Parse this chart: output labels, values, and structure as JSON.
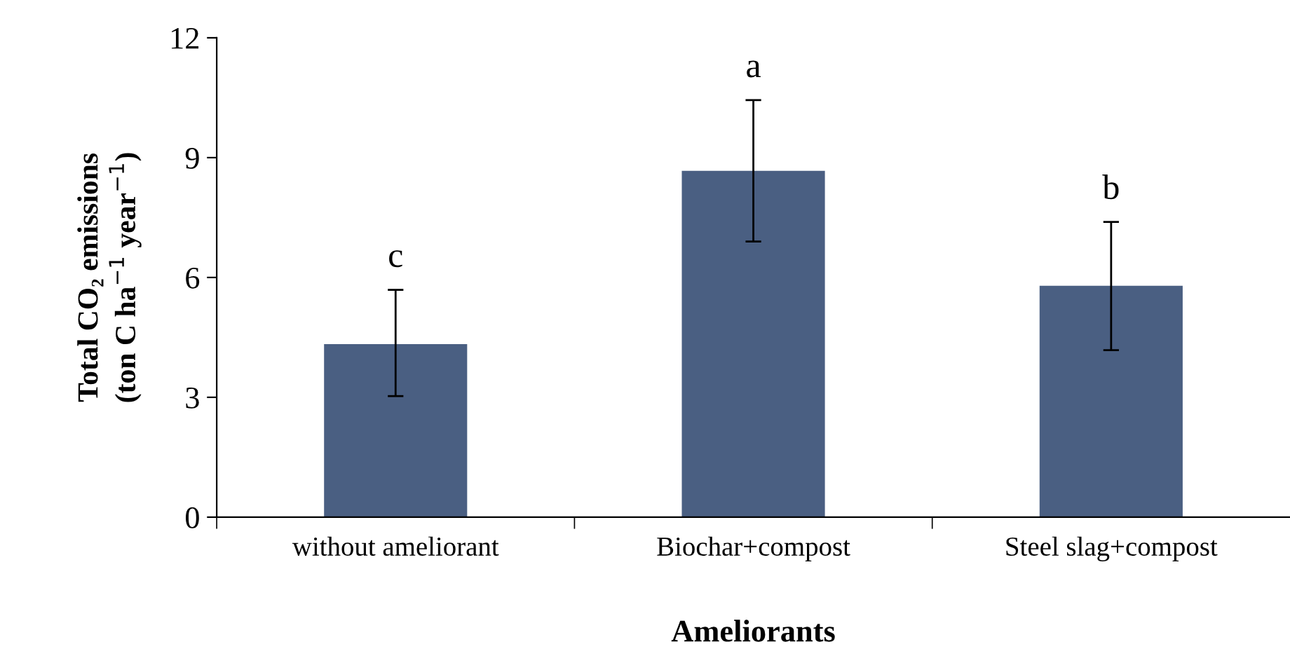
{
  "chart_data": {
    "type": "bar",
    "xlabel": "Ameliorants",
    "ylabel": "Total CO₂ emissions\n(ton C ha$^{−1}$ year$^{−1}$)",
    "categories": [
      "without ameliorant",
      "Biochar+compost",
      "Steel slag+compost"
    ],
    "values": [
      4.33,
      8.67,
      5.79
    ],
    "errors": [
      [
        3.03,
        5.69
      ],
      [
        6.9,
        10.44
      ],
      [
        4.18,
        7.39
      ]
    ],
    "color": "#4a5f82",
    "ylim": [
      0,
      12
    ],
    "yticks": [
      0,
      3,
      6,
      9,
      12
    ],
    "grid": false,
    "annotations": [
      "c",
      "a",
      "b"
    ]
  }
}
